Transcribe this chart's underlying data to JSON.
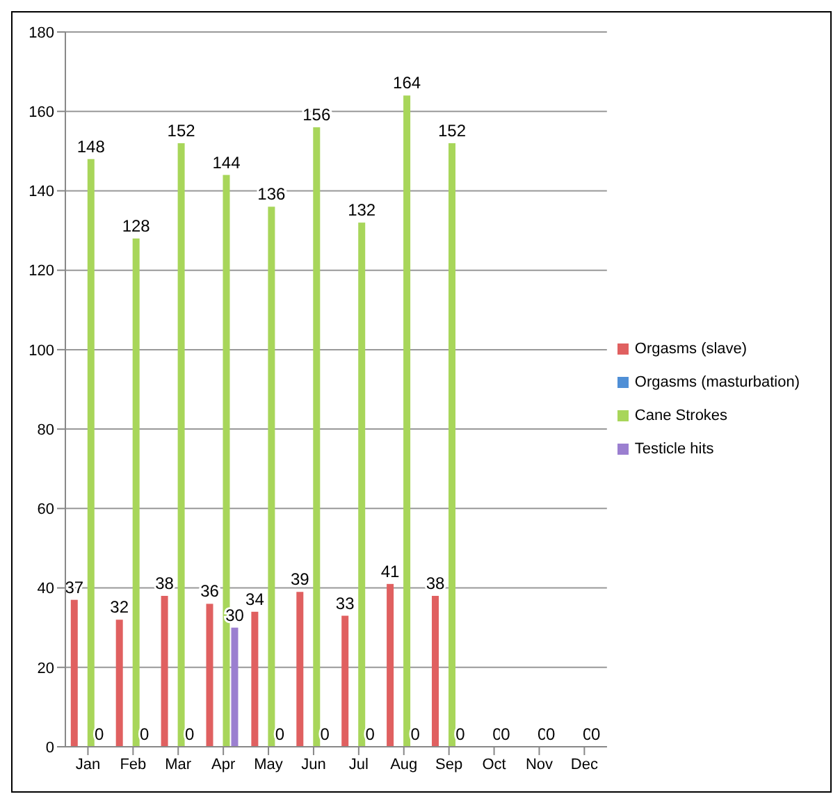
{
  "chart_data": {
    "type": "bar",
    "categories": [
      "Jan",
      "Feb",
      "Mar",
      "Apr",
      "May",
      "Jun",
      "Jul",
      "Aug",
      "Sep",
      "Oct",
      "Nov",
      "Dec"
    ],
    "series": [
      {
        "name": "Orgasms (slave)",
        "color": "#e06060",
        "values": [
          37,
          32,
          38,
          36,
          34,
          39,
          33,
          41,
          38,
          null,
          null,
          null
        ]
      },
      {
        "name": "Orgasms (masturbation)",
        "color": "#4f8fd6",
        "values": [
          null,
          null,
          null,
          null,
          null,
          null,
          null,
          null,
          null,
          null,
          null,
          null
        ]
      },
      {
        "name": "Cane Strokes",
        "color": "#a8d65a",
        "values": [
          148,
          128,
          152,
          144,
          136,
          156,
          132,
          164,
          152,
          0,
          0,
          0
        ]
      },
      {
        "name": "Testicle hits",
        "color": "#9b7fd0",
        "values": [
          0,
          0,
          0,
          30,
          0,
          0,
          0,
          0,
          0,
          0,
          0,
          0
        ]
      }
    ],
    "ylim": [
      0,
      180
    ],
    "yticks": [
      0,
      20,
      40,
      60,
      80,
      100,
      120,
      140,
      160,
      180
    ],
    "grid": "y",
    "legend": "right",
    "data_labels": true
  }
}
